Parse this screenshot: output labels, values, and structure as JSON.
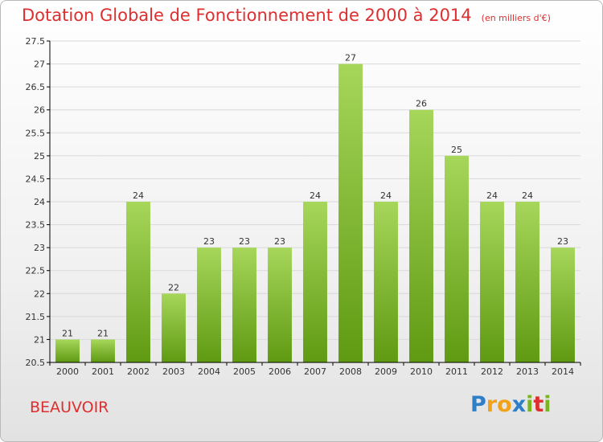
{
  "title": "Dotation Globale de Fonctionnement de 2000 à 2014",
  "subtitle": "(en milliers d'€)",
  "commune": "BEAUVOIR",
  "logo": {
    "letters": [
      "P",
      "r",
      "o",
      "x",
      "i",
      "t",
      "i"
    ],
    "colors": [
      "#2f7fc8",
      "#f0a21a",
      "#f0a21a",
      "#2f7fc8",
      "#7ab520",
      "#dd2f2f",
      "#7ab520"
    ]
  },
  "colors": {
    "bar_top": "#a6d65a",
    "bar_bottom": "#5f9a12",
    "grid": "#d9d9d9",
    "axis": "#000000",
    "text": "#333333"
  },
  "chart_data": {
    "type": "bar",
    "categories": [
      "2000",
      "2001",
      "2002",
      "2003",
      "2004",
      "2005",
      "2006",
      "2007",
      "2008",
      "2009",
      "2010",
      "2011",
      "2012",
      "2013",
      "2014"
    ],
    "values": [
      21,
      21,
      24,
      22,
      23,
      23,
      23,
      24,
      27,
      24,
      26,
      25,
      24,
      24,
      23
    ],
    "data_labels": [
      "21",
      "21",
      "24",
      "22",
      "23",
      "23",
      "23",
      "24",
      "27",
      "24",
      "26",
      "25",
      "24",
      "24",
      "23"
    ],
    "ylim": [
      20.5,
      27.5
    ],
    "yticks": [
      20.5,
      21,
      21.5,
      22,
      22.5,
      23,
      23.5,
      24,
      24.5,
      25,
      25.5,
      26,
      26.5,
      27,
      27.5
    ],
    "ytick_labels": [
      "20.5",
      "21",
      "21.5",
      "22",
      "22.5",
      "23",
      "23.5",
      "24",
      "24.5",
      "25",
      "25.5",
      "26",
      "26.5",
      "27",
      "27.5"
    ],
    "grid": true,
    "legend": "none"
  }
}
